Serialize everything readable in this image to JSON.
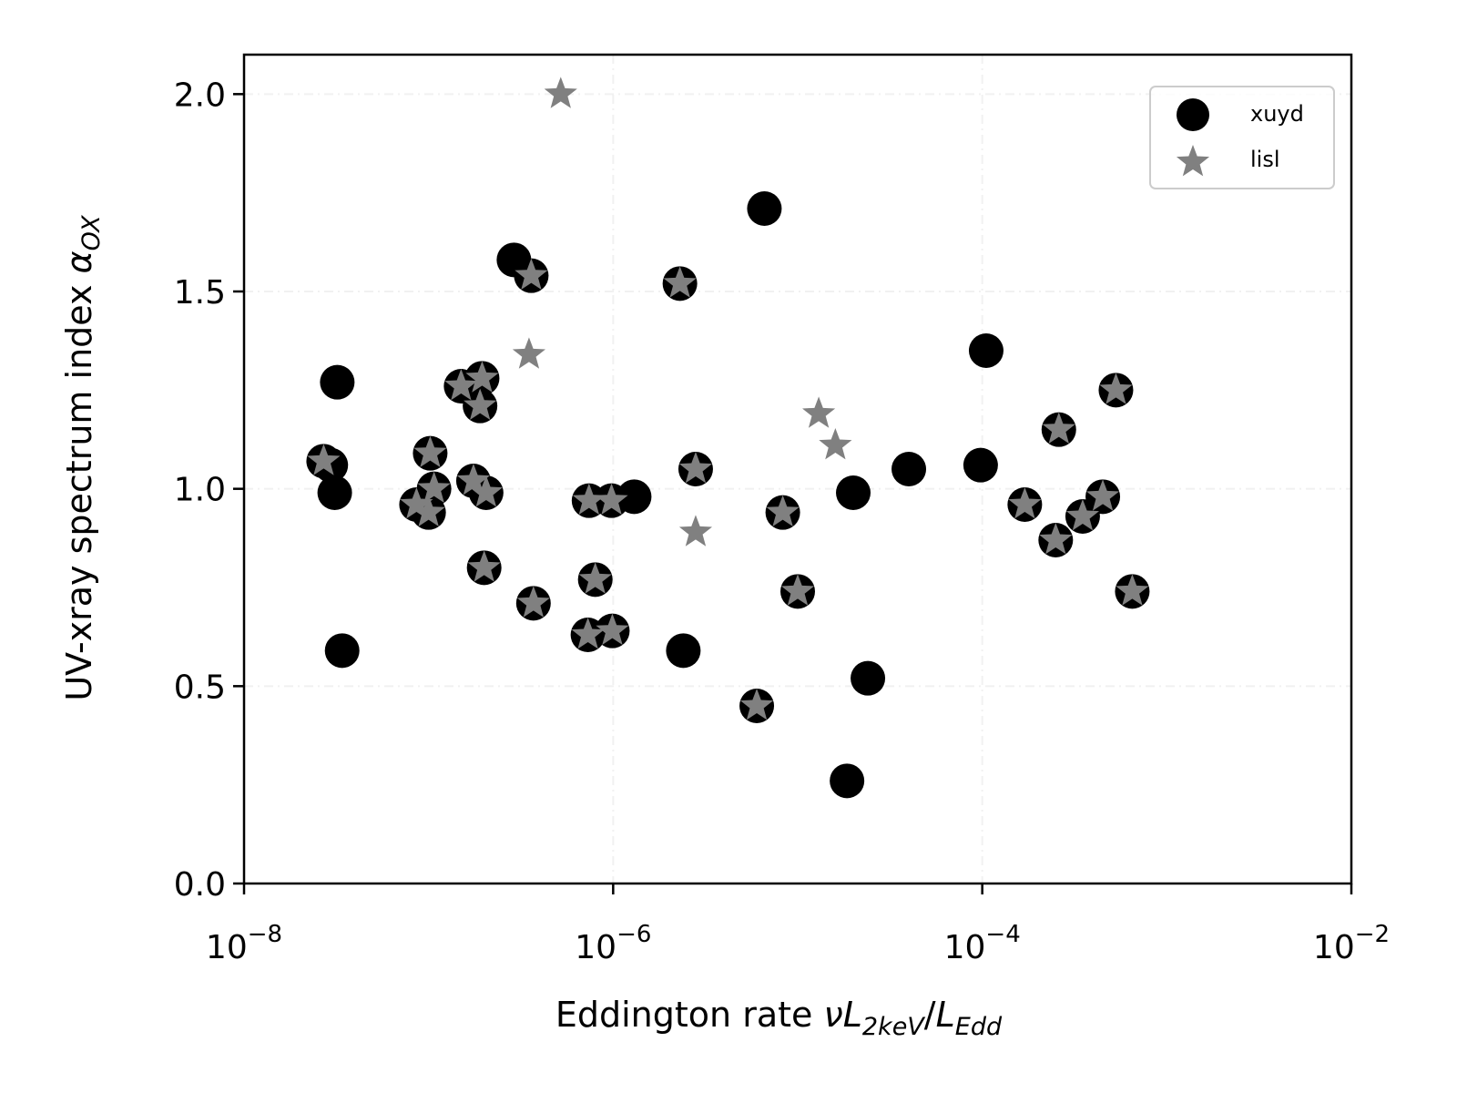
{
  "chart_data": {
    "type": "scatter",
    "x_scale": "log",
    "xlim": [
      1e-08,
      0.01
    ],
    "ylim": [
      0.0,
      2.1
    ],
    "x_ticks": [
      {
        "value": 1e-08,
        "base": "10",
        "exp": "−8"
      },
      {
        "value": 1e-06,
        "base": "10",
        "exp": "−6"
      },
      {
        "value": 0.0001,
        "base": "10",
        "exp": "−4"
      },
      {
        "value": 0.01,
        "base": "10",
        "exp": "−2"
      }
    ],
    "y_ticks": [
      {
        "value": 0.0,
        "label": "0.0"
      },
      {
        "value": 0.5,
        "label": "0.5"
      },
      {
        "value": 1.0,
        "label": "1.0"
      },
      {
        "value": 1.5,
        "label": "1.5"
      },
      {
        "value": 2.0,
        "label": "2.0"
      }
    ],
    "xlabel": {
      "prefix": "Eddington rate  ",
      "nu": "ν",
      "L1": "L",
      "sub1": "2keV",
      "slash": "/",
      "L2": "L",
      "sub2": "Edd"
    },
    "ylabel": {
      "text": "UV-xray spectrum index ",
      "alpha": "α",
      "sub": "OX"
    },
    "grid": true,
    "legend_position": "top-right",
    "series": [
      {
        "name": "xuyd",
        "marker": "circle",
        "color": "#000000",
        "points": [
          [
            2.7e-08,
            1.07
          ],
          [
            2.95e-08,
            1.06
          ],
          [
            3.1e-08,
            0.99
          ],
          [
            3.2e-08,
            1.27
          ],
          [
            3.4e-08,
            0.59
          ],
          [
            8.6e-08,
            0.96
          ],
          [
            1e-07,
            0.94
          ],
          [
            1.02e-07,
            1.09
          ],
          [
            1.07e-07,
            1.0
          ],
          [
            1.5e-07,
            1.26
          ],
          [
            1.75e-07,
            1.02
          ],
          [
            1.9e-07,
            1.21
          ],
          [
            1.95e-07,
            1.28
          ],
          [
            2.05e-07,
            0.99
          ],
          [
            2e-07,
            0.8
          ],
          [
            2.9e-07,
            1.58
          ],
          [
            3.6e-07,
            1.54
          ],
          [
            3.7e-07,
            0.71
          ],
          [
            7.4e-07,
            0.97
          ],
          [
            7.3e-07,
            0.63
          ],
          [
            8e-07,
            0.77
          ],
          [
            9.8e-07,
            0.97
          ],
          [
            9.9e-07,
            0.64
          ],
          [
            1.3e-06,
            0.98
          ],
          [
            2.3e-06,
            1.52
          ],
          [
            2.4e-06,
            0.59
          ],
          [
            2.8e-06,
            1.05
          ],
          [
            6e-06,
            0.45
          ],
          [
            6.6e-06,
            1.71
          ],
          [
            8.3e-06,
            0.94
          ],
          [
            1e-05,
            0.74
          ],
          [
            1.85e-05,
            0.26
          ],
          [
            2e-05,
            0.99
          ],
          [
            2.4e-05,
            0.52
          ],
          [
            4e-05,
            1.05
          ],
          [
            9.8e-05,
            1.06
          ],
          [
            0.000105,
            1.35
          ],
          [
            0.00017,
            0.96
          ],
          [
            0.00025,
            0.87
          ],
          [
            0.00026,
            1.15
          ],
          [
            0.00035,
            0.93
          ],
          [
            0.00045,
            0.98
          ],
          [
            0.00053,
            1.25
          ],
          [
            0.00065,
            0.74
          ]
        ]
      },
      {
        "name": "lisl",
        "marker": "star",
        "color": "#808080",
        "points": [
          [
            2.7e-08,
            1.07
          ],
          [
            8.6e-08,
            0.96
          ],
          [
            1e-07,
            0.94
          ],
          [
            1.02e-07,
            1.09
          ],
          [
            1.07e-07,
            1.0
          ],
          [
            1.5e-07,
            1.26
          ],
          [
            1.75e-07,
            1.02
          ],
          [
            1.9e-07,
            1.21
          ],
          [
            1.95e-07,
            1.28
          ],
          [
            2.05e-07,
            0.99
          ],
          [
            2e-07,
            0.8
          ],
          [
            3.5e-07,
            1.34
          ],
          [
            3.6e-07,
            1.54
          ],
          [
            3.7e-07,
            0.71
          ],
          [
            5.2e-07,
            2.0
          ],
          [
            7.4e-07,
            0.97
          ],
          [
            7.3e-07,
            0.63
          ],
          [
            8e-07,
            0.77
          ],
          [
            9.8e-07,
            0.97
          ],
          [
            9.9e-07,
            0.64
          ],
          [
            2.3e-06,
            1.52
          ],
          [
            2.8e-06,
            0.89
          ],
          [
            2.8e-06,
            1.05
          ],
          [
            6e-06,
            0.45
          ],
          [
            8.3e-06,
            0.94
          ],
          [
            1e-05,
            0.74
          ],
          [
            1.3e-05,
            1.19
          ],
          [
            1.6e-05,
            1.11
          ],
          [
            0.00017,
            0.96
          ],
          [
            0.00025,
            0.87
          ],
          [
            0.00026,
            1.15
          ],
          [
            0.00035,
            0.93
          ],
          [
            0.00045,
            0.98
          ],
          [
            0.00053,
            1.25
          ],
          [
            0.00065,
            0.74
          ]
        ]
      }
    ]
  }
}
